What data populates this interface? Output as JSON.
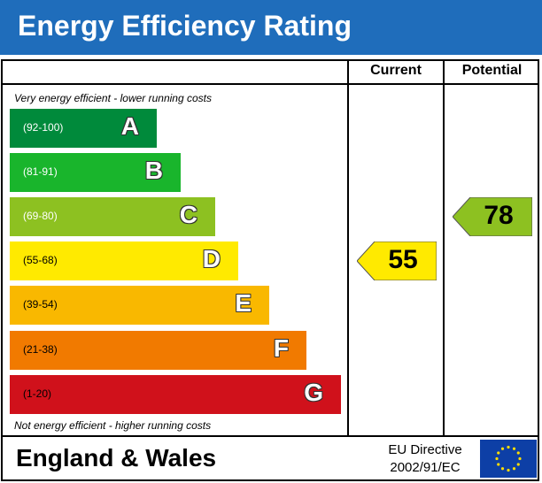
{
  "header": {
    "title": "Energy Efficiency Rating",
    "background": "#1f6dbb"
  },
  "columns": {
    "current": "Current",
    "potential": "Potential"
  },
  "notes": {
    "top": "Very energy efficient - lower running costs",
    "bottom": "Not energy efficient - higher running costs"
  },
  "chart_data": {
    "type": "bar",
    "title": "Energy Efficiency Rating",
    "categories": [
      "A",
      "B",
      "C",
      "D",
      "E",
      "F",
      "G"
    ],
    "ranges": [
      "(92-100)",
      "(81-91)",
      "(69-80)",
      "(55-68)",
      "(39-54)",
      "(21-38)",
      "(1-20)"
    ],
    "colors": [
      "#008a3b",
      "#19b52c",
      "#8dc121",
      "#ffea00",
      "#f9b800",
      "#f17a00",
      "#d0111b"
    ],
    "current": {
      "value": 55,
      "band": "D",
      "color": "#ffea00"
    },
    "potential": {
      "value": 78,
      "band": "C",
      "color": "#8dc121"
    }
  },
  "footer": {
    "region": "England & Wales",
    "directive_line1": "EU Directive",
    "directive_line2": "2002/91/EC",
    "flag_color": "#0d3fa6",
    "star_color": "#ffdd00"
  }
}
